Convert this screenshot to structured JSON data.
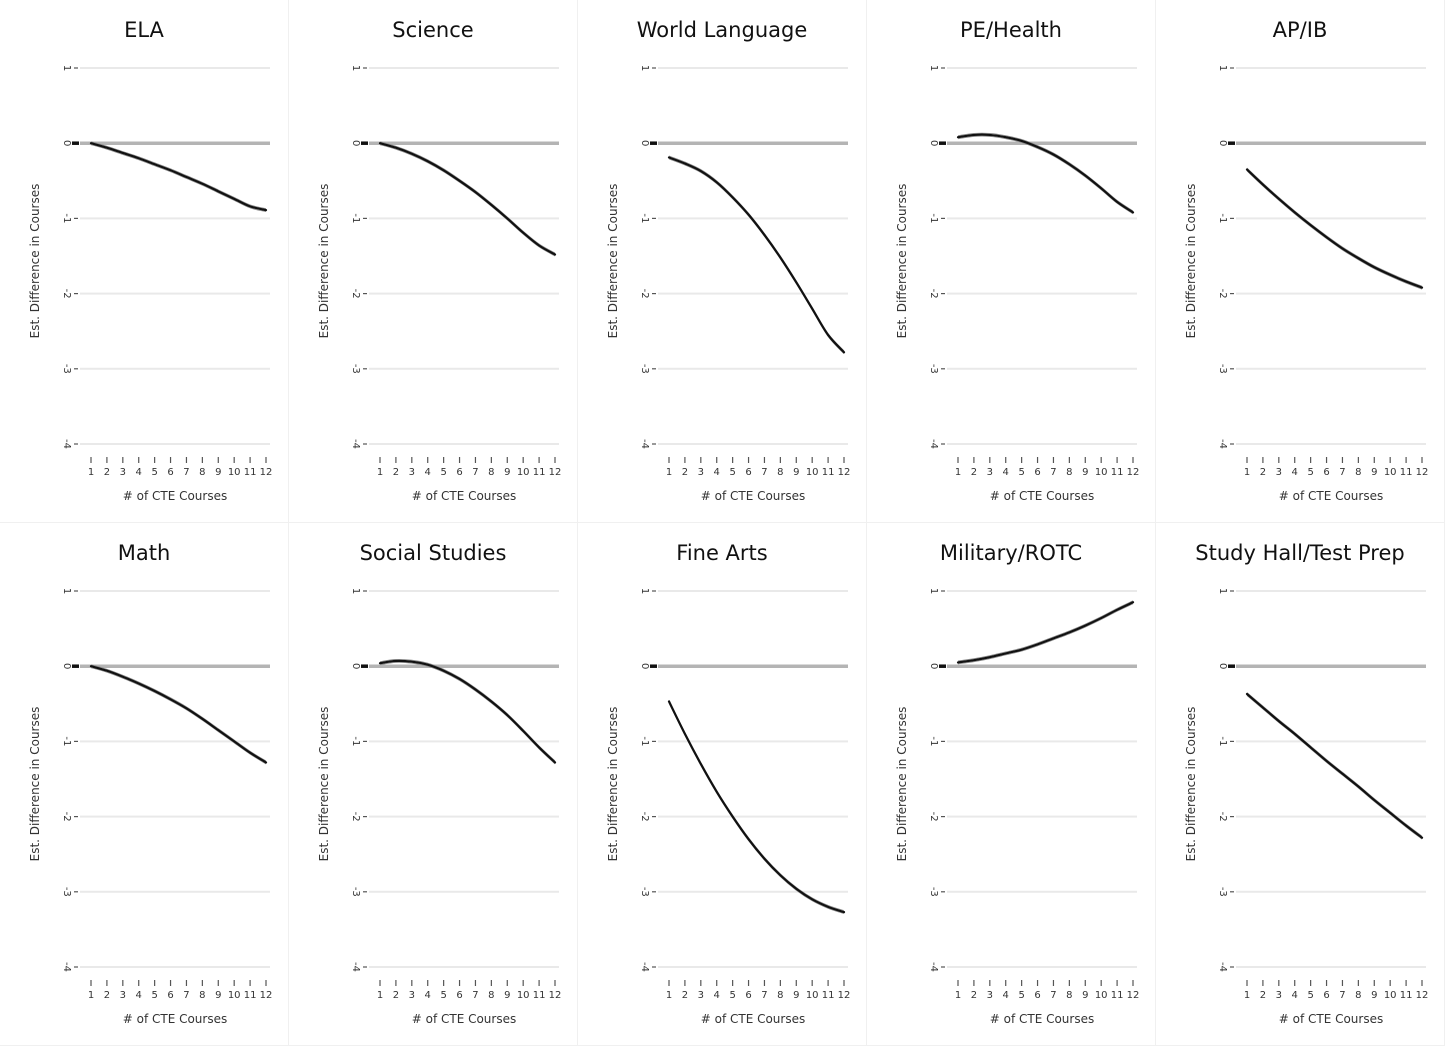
{
  "chart_data": [
    {
      "type": "line",
      "title": "ELA",
      "xlabel": "# of CTE Courses",
      "ylabel": "Est. Difference in Courses",
      "x": [
        1,
        2,
        3,
        4,
        5,
        6,
        7,
        8,
        9,
        10,
        11,
        12
      ],
      "xticks": [
        "1",
        "2",
        "3",
        "4",
        "5",
        "6",
        "7",
        "8",
        "9",
        "10",
        "11",
        "12"
      ],
      "ylim": [
        -4,
        1
      ],
      "yticks": [
        "-4",
        "-3",
        "-2",
        "-1",
        "0",
        "1"
      ],
      "series": [
        {
          "values": [
            0.0,
            -0.06,
            -0.13,
            -0.2,
            -0.28,
            -0.36,
            -0.45,
            -0.54,
            -0.64,
            -0.74,
            -0.84,
            -0.89
          ]
        }
      ]
    },
    {
      "type": "line",
      "title": "Science",
      "xlabel": "# of CTE Courses",
      "ylabel": "Est. Difference in Courses",
      "x": [
        1,
        2,
        3,
        4,
        5,
        6,
        7,
        8,
        9,
        10,
        11,
        12
      ],
      "xticks": [
        "1",
        "2",
        "3",
        "4",
        "5",
        "6",
        "7",
        "8",
        "9",
        "10",
        "11",
        "12"
      ],
      "ylim": [
        -4,
        1
      ],
      "yticks": [
        "-4",
        "-3",
        "-2",
        "-1",
        "0",
        "1"
      ],
      "series": [
        {
          "values": [
            0.0,
            -0.06,
            -0.14,
            -0.24,
            -0.36,
            -0.5,
            -0.65,
            -0.82,
            -1.0,
            -1.19,
            -1.36,
            -1.48
          ]
        }
      ]
    },
    {
      "type": "line",
      "title": "World Language",
      "xlabel": "# of CTE Courses",
      "ylabel": "Est. Difference in Courses",
      "x": [
        1,
        2,
        3,
        4,
        5,
        6,
        7,
        8,
        9,
        10,
        11,
        12
      ],
      "xticks": [
        "1",
        "2",
        "3",
        "4",
        "5",
        "6",
        "7",
        "8",
        "9",
        "10",
        "11",
        "12"
      ],
      "ylim": [
        -4,
        1
      ],
      "yticks": [
        "-4",
        "-3",
        "-2",
        "-1",
        "0",
        "1"
      ],
      "series": [
        {
          "values": [
            -0.19,
            -0.27,
            -0.37,
            -0.52,
            -0.72,
            -0.95,
            -1.22,
            -1.52,
            -1.85,
            -2.2,
            -2.55,
            -2.78
          ]
        }
      ]
    },
    {
      "type": "line",
      "title": "PE/Health",
      "xlabel": "# of CTE Courses",
      "ylabel": "Est. Difference in Courses",
      "x": [
        1,
        2,
        3,
        4,
        5,
        6,
        7,
        8,
        9,
        10,
        11,
        12
      ],
      "xticks": [
        "1",
        "2",
        "3",
        "4",
        "5",
        "6",
        "7",
        "8",
        "9",
        "10",
        "11",
        "12"
      ],
      "ylim": [
        -4,
        1
      ],
      "yticks": [
        "-4",
        "-3",
        "-2",
        "-1",
        "0",
        "1"
      ],
      "series": [
        {
          "values": [
            0.08,
            0.11,
            0.11,
            0.08,
            0.03,
            -0.05,
            -0.15,
            -0.28,
            -0.43,
            -0.6,
            -0.78,
            -0.92
          ]
        }
      ]
    },
    {
      "type": "line",
      "title": "AP/IB",
      "xlabel": "# of CTE Courses",
      "ylabel": "Est. Difference in Courses",
      "x": [
        1,
        2,
        3,
        4,
        5,
        6,
        7,
        8,
        9,
        10,
        11,
        12
      ],
      "xticks": [
        "1",
        "2",
        "3",
        "4",
        "5",
        "6",
        "7",
        "8",
        "9",
        "10",
        "11",
        "12"
      ],
      "ylim": [
        -4,
        1
      ],
      "yticks": [
        "-4",
        "-3",
        "-2",
        "-1",
        "0",
        "1"
      ],
      "series": [
        {
          "values": [
            -0.35,
            -0.55,
            -0.74,
            -0.92,
            -1.09,
            -1.25,
            -1.4,
            -1.53,
            -1.65,
            -1.75,
            -1.84,
            -1.92
          ]
        }
      ]
    },
    {
      "type": "line",
      "title": "Math",
      "xlabel": "# of CTE Courses",
      "ylabel": "Est. Difference in Courses",
      "x": [
        1,
        2,
        3,
        4,
        5,
        6,
        7,
        8,
        9,
        10,
        11,
        12
      ],
      "xticks": [
        "1",
        "2",
        "3",
        "4",
        "5",
        "6",
        "7",
        "8",
        "9",
        "10",
        "11",
        "12"
      ],
      "ylim": [
        -4,
        1
      ],
      "yticks": [
        "-4",
        "-3",
        "-2",
        "-1",
        "0",
        "1"
      ],
      "series": [
        {
          "values": [
            0.0,
            -0.06,
            -0.14,
            -0.23,
            -0.33,
            -0.44,
            -0.56,
            -0.7,
            -0.85,
            -1.0,
            -1.15,
            -1.28
          ]
        }
      ]
    },
    {
      "type": "line",
      "title": "Social Studies",
      "xlabel": "# of CTE Courses",
      "ylabel": "Est. Difference in Courses",
      "x": [
        1,
        2,
        3,
        4,
        5,
        6,
        7,
        8,
        9,
        10,
        11,
        12
      ],
      "xticks": [
        "1",
        "2",
        "3",
        "4",
        "5",
        "6",
        "7",
        "8",
        "9",
        "10",
        "11",
        "12"
      ],
      "ylim": [
        -4,
        1
      ],
      "yticks": [
        "-4",
        "-3",
        "-2",
        "-1",
        "0",
        "1"
      ],
      "series": [
        {
          "values": [
            0.04,
            0.07,
            0.06,
            0.02,
            -0.06,
            -0.17,
            -0.31,
            -0.47,
            -0.65,
            -0.86,
            -1.08,
            -1.28
          ]
        }
      ]
    },
    {
      "type": "line",
      "title": "Fine Arts",
      "xlabel": "# of CTE Courses",
      "ylabel": "Est. Difference in Courses",
      "x": [
        1,
        2,
        3,
        4,
        5,
        6,
        7,
        8,
        9,
        10,
        11,
        12
      ],
      "xticks": [
        "1",
        "2",
        "3",
        "4",
        "5",
        "6",
        "7",
        "8",
        "9",
        "10",
        "11",
        "12"
      ],
      "ylim": [
        -4,
        1
      ],
      "yticks": [
        "-4",
        "-3",
        "-2",
        "-1",
        "0",
        "1"
      ],
      "series": [
        {
          "values": [
            -0.47,
            -0.9,
            -1.3,
            -1.67,
            -2.0,
            -2.3,
            -2.56,
            -2.78,
            -2.96,
            -3.1,
            -3.2,
            -3.27
          ]
        }
      ]
    },
    {
      "type": "line",
      "title": "Military/ROTC",
      "xlabel": "# of CTE Courses",
      "ylabel": "Est. Difference in Courses",
      "x": [
        1,
        2,
        3,
        4,
        5,
        6,
        7,
        8,
        9,
        10,
        11,
        12
      ],
      "xticks": [
        "1",
        "2",
        "3",
        "4",
        "5",
        "6",
        "7",
        "8",
        "9",
        "10",
        "11",
        "12"
      ],
      "ylim": [
        -4,
        1
      ],
      "yticks": [
        "-4",
        "-3",
        "-2",
        "-1",
        "0",
        "1"
      ],
      "series": [
        {
          "values": [
            0.05,
            0.08,
            0.12,
            0.17,
            0.22,
            0.29,
            0.37,
            0.45,
            0.54,
            0.64,
            0.75,
            0.85
          ]
        }
      ]
    },
    {
      "type": "line",
      "title": "Study Hall/Test Prep",
      "xlabel": "# of CTE Courses",
      "ylabel": "Est. Difference in Courses",
      "x": [
        1,
        2,
        3,
        4,
        5,
        6,
        7,
        8,
        9,
        10,
        11,
        12
      ],
      "xticks": [
        "1",
        "2",
        "3",
        "4",
        "5",
        "6",
        "7",
        "8",
        "9",
        "10",
        "11",
        "12"
      ],
      "ylim": [
        -4,
        1
      ],
      "yticks": [
        "-4",
        "-3",
        "-2",
        "-1",
        "0",
        "1"
      ],
      "series": [
        {
          "values": [
            -0.37,
            -0.55,
            -0.73,
            -0.9,
            -1.08,
            -1.26,
            -1.43,
            -1.6,
            -1.78,
            -1.95,
            -2.12,
            -2.28
          ]
        }
      ]
    }
  ]
}
